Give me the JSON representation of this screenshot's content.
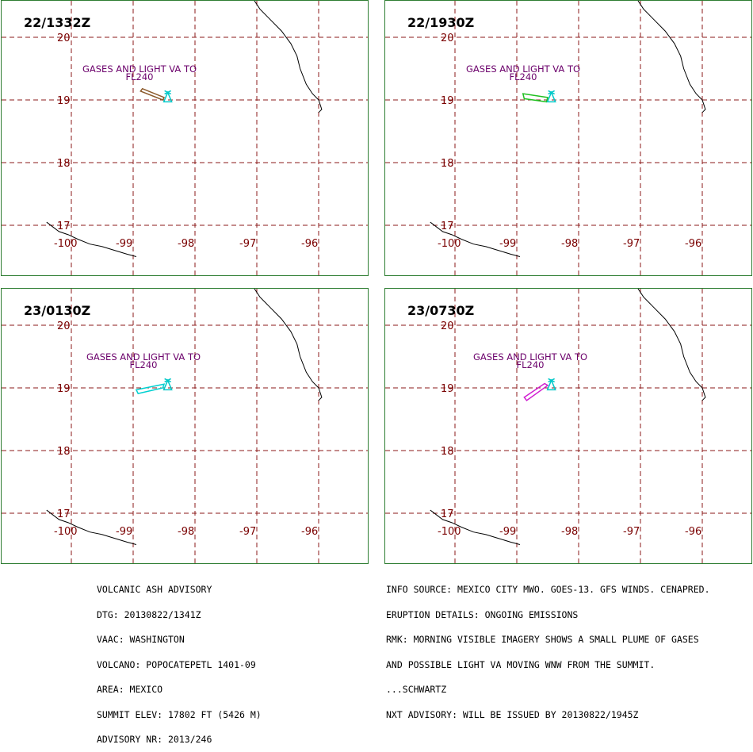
{
  "panels": [
    {
      "time": "22/1332Z",
      "label_line1": "GASES AND LIGHT VA TO",
      "label_line2": "FL240",
      "plume_color": "#8b5a2b",
      "plume": [
        [
          -98.85,
          19.18
        ],
        [
          -98.5,
          19.04
        ],
        [
          -98.52,
          19.0
        ],
        [
          -98.88,
          19.14
        ]
      ]
    },
    {
      "time": "22/1930Z",
      "label_line1": "GASES AND LIGHT VA TO",
      "label_line2": "FL240",
      "plume_color": "#22c022",
      "plume": [
        [
          -98.9,
          19.1
        ],
        [
          -98.5,
          19.04
        ],
        [
          -98.52,
          18.97
        ],
        [
          -98.88,
          19.02
        ]
      ]
    },
    {
      "time": "23/0130Z",
      "label_line1": "GASES AND LIGHT VA TO",
      "label_line2": "FL240",
      "plume_color": "#00d0d0",
      "plume": [
        [
          -98.95,
          18.97
        ],
        [
          -98.5,
          19.06
        ],
        [
          -98.52,
          19.0
        ],
        [
          -98.92,
          18.91
        ]
      ]
    },
    {
      "time": "23/0730Z",
      "label_line1": "GASES AND LIGHT VA TO",
      "label_line2": "FL240",
      "plume_color": "#d020d0",
      "plume": [
        [
          -98.88,
          18.85
        ],
        [
          -98.55,
          19.07
        ],
        [
          -98.5,
          19.04
        ],
        [
          -98.84,
          18.8
        ]
      ]
    }
  ],
  "map": {
    "lon_ticks": [
      "-100",
      "-99",
      "-98",
      "-97",
      "-96"
    ],
    "lat_ticks": [
      "20",
      "19",
      "18",
      "17"
    ],
    "lon_range": [
      -100.1,
      -95.85
    ],
    "lat_range": [
      16.5,
      20.6
    ],
    "grid_color": "#8b1a1a",
    "tick_color": "#7a0000",
    "label_color": "#6b006b",
    "volcano_color": "#00c8c8",
    "volcano": [
      -98.62,
      19.02
    ],
    "coast_north": [
      [
        -97.05,
        20.6
      ],
      [
        -96.95,
        20.45
      ],
      [
        -96.8,
        20.3
      ],
      [
        -96.6,
        20.1
      ],
      [
        -96.45,
        19.9
      ],
      [
        -96.35,
        19.7
      ],
      [
        -96.3,
        19.5
      ],
      [
        -96.2,
        19.25
      ],
      [
        -96.1,
        19.1
      ],
      [
        -96.0,
        19.0
      ],
      [
        -95.95,
        18.85
      ],
      [
        -96.0,
        18.8
      ]
    ],
    "coast_south": [
      [
        -100.4,
        17.05
      ],
      [
        -100.2,
        16.9
      ],
      [
        -100.05,
        16.85
      ],
      [
        -99.9,
        16.78
      ],
      [
        -99.7,
        16.7
      ],
      [
        -99.5,
        16.66
      ],
      [
        -99.3,
        16.6
      ],
      [
        -99.1,
        16.54
      ],
      [
        -98.95,
        16.5
      ]
    ]
  },
  "advisory": {
    "left": [
      "VOLCANIC ASH ADVISORY",
      "DTG: 20130822/1341Z",
      "VAAC: WASHINGTON",
      "VOLCANO: POPOCATEPETL 1401-09",
      "AREA: MEXICO",
      "SUMMIT ELEV: 17802 FT (5426 M)",
      "ADVISORY NR: 2013/246"
    ],
    "right": [
      "INFO SOURCE: MEXICO CITY MWO. GOES-13. GFS WINDS. CENAPRED.",
      "ERUPTION DETAILS: ONGOING EMISSIONS",
      "RMK: MORNING VISIBLE IMAGERY SHOWS A SMALL PLUME OF GASES",
      "AND POSSIBLE LIGHT VA MOVING WNW FROM THE SUMMIT.",
      "...SCHWARTZ",
      "NXT ADVISORY: WILL BE ISSUED BY 20130822/1945Z"
    ]
  }
}
